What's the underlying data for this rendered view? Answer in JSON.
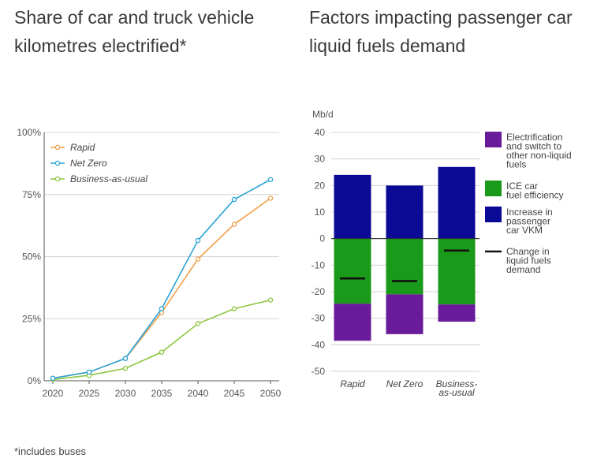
{
  "chart_data": [
    {
      "type": "line",
      "title": "Share of car and truck vehicle kilometres electrified*",
      "x": [
        2020,
        2025,
        2030,
        2035,
        2040,
        2045,
        2050
      ],
      "ylim": [
        0,
        100
      ],
      "yticks": [
        "0%",
        "25%",
        "50%",
        "75%",
        "100%"
      ],
      "legend_position": "top-left",
      "grid": true,
      "series": [
        {
          "name": "Rapid",
          "color": "#f0a04b",
          "values": [
            1,
            3.5,
            9,
            27.5,
            49,
            63,
            73.5
          ]
        },
        {
          "name": "Net Zero",
          "color": "#2aa3d6",
          "values": [
            1,
            3.5,
            9,
            29,
            56.5,
            73,
            81
          ]
        },
        {
          "name": "Business-as-usual",
          "color": "#8cc63f",
          "values": [
            0.5,
            2.2,
            5,
            11.5,
            23,
            29,
            32.5
          ]
        }
      ]
    },
    {
      "type": "bar",
      "stacked": true,
      "title": "Factors impacting passenger car liquid fuels demand",
      "ylabel": "Mb/d",
      "ylim": [
        -50,
        40
      ],
      "yticks": [
        -50,
        -40,
        -30,
        -20,
        -10,
        0,
        10,
        20,
        30,
        40
      ],
      "categories": [
        "Rapid",
        "Net Zero",
        "Business-as-usual"
      ],
      "category_lines": [
        [
          "Rapid"
        ],
        [
          "Net Zero"
        ],
        [
          "Business-",
          "as-usual"
        ]
      ],
      "legend_position": "right",
      "series": [
        {
          "name": "Electrification and switch to other non-liquid fuels",
          "legend_lines": [
            "Electrification",
            "and switch to",
            "other non-liquid",
            "fuels"
          ],
          "color": "#6a1b9a",
          "values": [
            -14,
            -15,
            -6.5
          ]
        },
        {
          "name": "ICE car fuel efficiency",
          "legend_lines": [
            "ICE car",
            "fuel efficiency"
          ],
          "color": "#1a9a1a",
          "values": [
            -24.5,
            -21,
            -24.8
          ]
        },
        {
          "name": "Increase in passenger car VKM",
          "legend_lines": [
            "Increase in",
            "passenger",
            "car VKM"
          ],
          "color": "#0a0a96",
          "values": [
            24,
            20,
            27
          ]
        }
      ],
      "markers": {
        "name": "Change in liquid fuels demand",
        "legend_lines": [
          "Change in",
          "liquid fuels",
          "demand"
        ],
        "color": "#111111",
        "values": [
          -15,
          -16,
          -4.5
        ]
      }
    }
  ],
  "footnote": "*includes buses"
}
